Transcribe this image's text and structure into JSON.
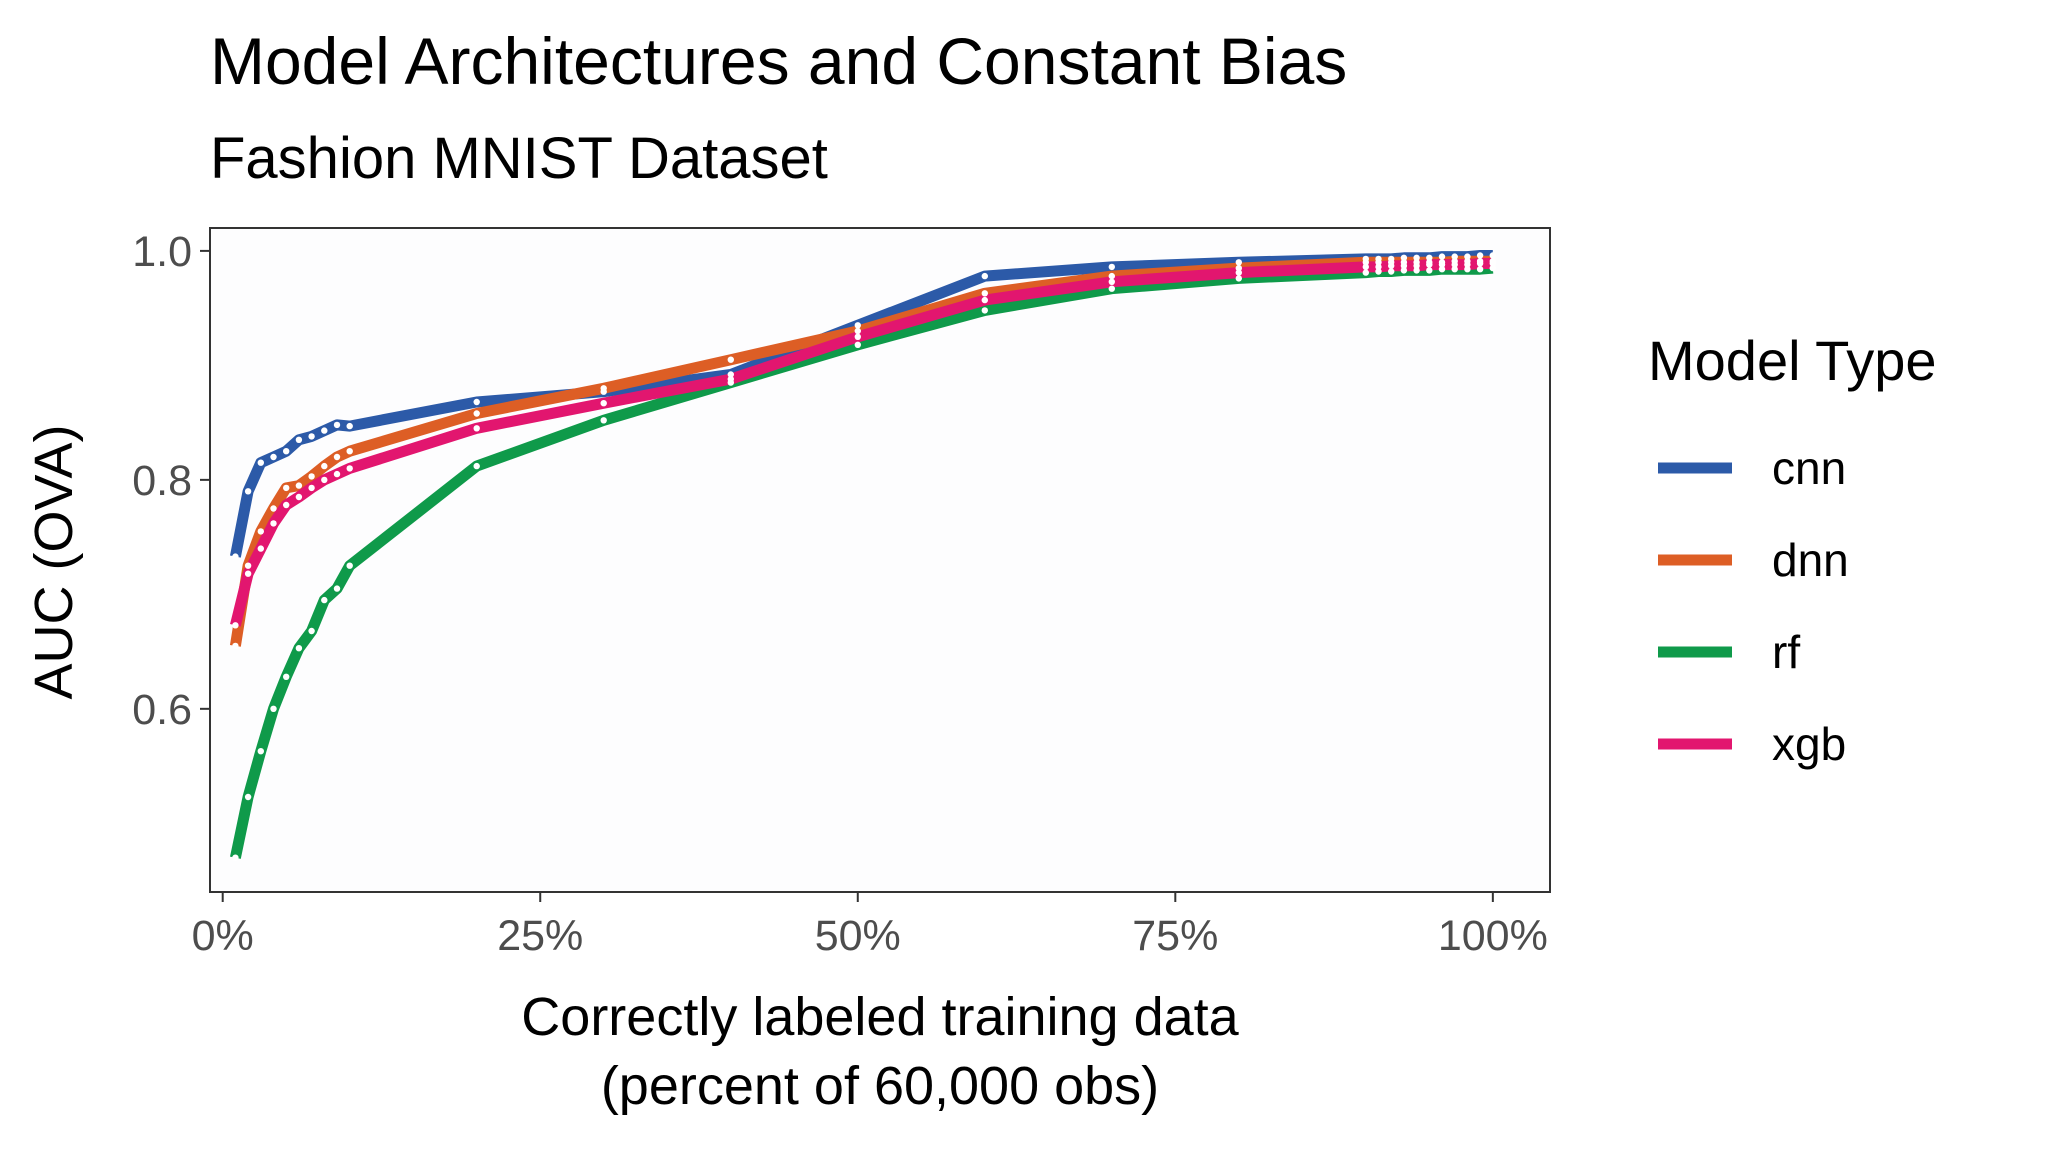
{
  "chart_data": {
    "type": "line",
    "title": "Model Architectures and Constant Bias",
    "subtitle": "Fashion MNIST Dataset",
    "xlabel": [
      "Correctly labeled training data",
      "(percent of 60,000 obs)"
    ],
    "ylabel": "AUC (OVA)",
    "xlim": [
      -0.01,
      1.045
    ],
    "ylim": [
      0.44,
      1.02
    ],
    "x_ticks": [
      0,
      0.25,
      0.5,
      0.75,
      1.0
    ],
    "x_tick_labels": [
      "0%",
      "25%",
      "50%",
      "75%",
      "100%"
    ],
    "y_ticks": [
      0.6,
      0.8,
      1.0
    ],
    "y_tick_labels": [
      "0.6",
      "0.8",
      "1.0"
    ],
    "legend": {
      "title": "Model Type",
      "position": "right",
      "labels": [
        "cnn",
        "dnn",
        "rf",
        "xgb"
      ]
    },
    "x": [
      0.01,
      0.02,
      0.03,
      0.04,
      0.05,
      0.06,
      0.07,
      0.08,
      0.09,
      0.1,
      0.2,
      0.3,
      0.4,
      0.5,
      0.6,
      0.7,
      0.8,
      0.9,
      0.91,
      0.92,
      0.93,
      0.94,
      0.95,
      0.96,
      0.97,
      0.98,
      0.99,
      1.0
    ],
    "series": [
      {
        "name": "cnn",
        "color": "#2c5aa8",
        "values": [
          0.733,
          0.79,
          0.815,
          0.82,
          0.825,
          0.835,
          0.838,
          0.843,
          0.848,
          0.847,
          0.868,
          0.877,
          0.892,
          0.935,
          0.978,
          0.986,
          0.99,
          0.993,
          0.993,
          0.993,
          0.994,
          0.994,
          0.994,
          0.995,
          0.995,
          0.995,
          0.996,
          0.996
        ]
      },
      {
        "name": "dnn",
        "color": "#dd5e25",
        "values": [
          0.655,
          0.725,
          0.755,
          0.775,
          0.793,
          0.795,
          0.803,
          0.812,
          0.82,
          0.825,
          0.858,
          0.88,
          0.905,
          0.93,
          0.963,
          0.978,
          0.985,
          0.99,
          0.99,
          0.99,
          0.99,
          0.99,
          0.99,
          0.99,
          0.991,
          0.991,
          0.991,
          0.991
        ]
      },
      {
        "name": "rf",
        "color": "#0f9a4a",
        "values": [
          0.47,
          0.523,
          0.563,
          0.6,
          0.628,
          0.653,
          0.668,
          0.695,
          0.705,
          0.725,
          0.812,
          0.852,
          0.885,
          0.918,
          0.948,
          0.967,
          0.976,
          0.981,
          0.982,
          0.982,
          0.983,
          0.983,
          0.983,
          0.984,
          0.984,
          0.984,
          0.984,
          0.985
        ]
      },
      {
        "name": "xgb",
        "color": "#e2166f",
        "values": [
          0.673,
          0.718,
          0.74,
          0.762,
          0.778,
          0.785,
          0.793,
          0.8,
          0.805,
          0.81,
          0.845,
          0.867,
          0.888,
          0.925,
          0.957,
          0.973,
          0.981,
          0.986,
          0.986,
          0.987,
          0.987,
          0.987,
          0.988,
          0.988,
          0.988,
          0.988,
          0.989,
          0.989
        ]
      }
    ]
  }
}
